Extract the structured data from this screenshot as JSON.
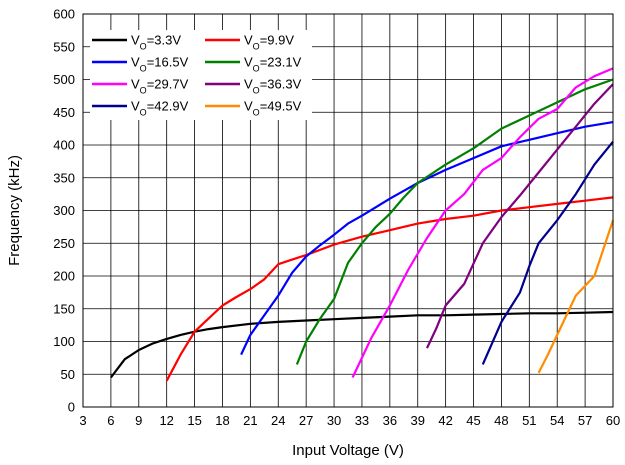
{
  "chart_data": {
    "type": "line",
    "title": "",
    "xlabel": "Input Voltage (V)",
    "ylabel": "Frequency (kHz)",
    "xlim": [
      3,
      60
    ],
    "ylim": [
      0,
      600
    ],
    "xticks": [
      3,
      6,
      9,
      12,
      15,
      18,
      21,
      24,
      27,
      30,
      33,
      36,
      39,
      42,
      45,
      48,
      51,
      54,
      57,
      60
    ],
    "yticks": [
      0,
      50,
      100,
      150,
      200,
      250,
      300,
      350,
      400,
      450,
      500,
      550,
      600
    ],
    "grid": true,
    "legend_position": "top-left",
    "series": [
      {
        "name": "VO=3.3V",
        "legend_main": "V",
        "legend_sub": "O",
        "legend_tail": "=3.3V",
        "color": "#000000",
        "points": [
          [
            6,
            45
          ],
          [
            7.5,
            73
          ],
          [
            9,
            87
          ],
          [
            10.5,
            97
          ],
          [
            12,
            104
          ],
          [
            13.5,
            110
          ],
          [
            15,
            115
          ],
          [
            16.5,
            119
          ],
          [
            18,
            122
          ],
          [
            21,
            127
          ],
          [
            24,
            130
          ],
          [
            27,
            132
          ],
          [
            30,
            134
          ],
          [
            33,
            136
          ],
          [
            36,
            138
          ],
          [
            39,
            140
          ],
          [
            42,
            140
          ],
          [
            45,
            141
          ],
          [
            48,
            142
          ],
          [
            51,
            143
          ],
          [
            54,
            143
          ],
          [
            57,
            144
          ],
          [
            60,
            145
          ]
        ]
      },
      {
        "name": "VO=9.9V",
        "legend_main": "V",
        "legend_sub": "O",
        "legend_tail": "=9.9V",
        "color": "#ff0000",
        "points": [
          [
            12,
            40
          ],
          [
            13.5,
            80
          ],
          [
            15,
            115
          ],
          [
            16.5,
            135
          ],
          [
            18,
            155
          ],
          [
            19.5,
            168
          ],
          [
            21,
            180
          ],
          [
            22.5,
            195
          ],
          [
            24,
            218
          ],
          [
            25.5,
            225
          ],
          [
            27,
            232
          ],
          [
            30,
            248
          ],
          [
            33,
            260
          ],
          [
            36,
            270
          ],
          [
            39,
            280
          ],
          [
            42,
            287
          ],
          [
            45,
            292
          ],
          [
            48,
            300
          ],
          [
            51,
            305
          ],
          [
            54,
            310
          ],
          [
            57,
            315
          ],
          [
            60,
            320
          ]
        ]
      },
      {
        "name": "VO=16.5V",
        "legend_main": "V",
        "legend_sub": "O",
        "legend_tail": "=16.5V",
        "color": "#0000ff",
        "points": [
          [
            20,
            80
          ],
          [
            21,
            110
          ],
          [
            22.5,
            140
          ],
          [
            24,
            170
          ],
          [
            25.5,
            205
          ],
          [
            27,
            230
          ],
          [
            28.5,
            247
          ],
          [
            30,
            263
          ],
          [
            31.5,
            280
          ],
          [
            33,
            292
          ],
          [
            34.5,
            305
          ],
          [
            36,
            318
          ],
          [
            37.5,
            330
          ],
          [
            39,
            342
          ],
          [
            42,
            362
          ],
          [
            45,
            380
          ],
          [
            48,
            398
          ],
          [
            51,
            408
          ],
          [
            54,
            418
          ],
          [
            57,
            428
          ],
          [
            60,
            435
          ]
        ]
      },
      {
        "name": "VO=23.1V",
        "legend_main": "V",
        "legend_sub": "O",
        "legend_tail": "=23.1V",
        "color": "#008000",
        "points": [
          [
            26,
            65
          ],
          [
            27,
            100
          ],
          [
            28.5,
            135
          ],
          [
            30,
            165
          ],
          [
            31.5,
            220
          ],
          [
            33,
            250
          ],
          [
            34.5,
            275
          ],
          [
            36,
            295
          ],
          [
            37.5,
            320
          ],
          [
            39,
            342
          ],
          [
            42,
            370
          ],
          [
            45,
            395
          ],
          [
            48,
            425
          ],
          [
            51,
            445
          ],
          [
            54,
            465
          ],
          [
            57,
            485
          ],
          [
            60,
            500
          ]
        ]
      },
      {
        "name": "VO=29.7V",
        "legend_main": "V",
        "legend_sub": "O",
        "legend_tail": "=29.7V",
        "color": "#ff00ff",
        "points": [
          [
            32,
            45
          ],
          [
            33,
            75
          ],
          [
            34,
            105
          ],
          [
            36,
            155
          ],
          [
            38,
            210
          ],
          [
            40,
            258
          ],
          [
            42,
            300
          ],
          [
            44,
            325
          ],
          [
            46,
            362
          ],
          [
            48,
            380
          ],
          [
            50,
            412
          ],
          [
            52,
            440
          ],
          [
            54,
            455
          ],
          [
            56,
            488
          ],
          [
            58,
            505
          ],
          [
            60,
            517
          ]
        ]
      },
      {
        "name": "VO=36.3V",
        "legend_main": "V",
        "legend_sub": "O",
        "legend_tail": "=36.3V",
        "color": "#800080",
        "points": [
          [
            40,
            90
          ],
          [
            41,
            120
          ],
          [
            42,
            155
          ],
          [
            44,
            188
          ],
          [
            46,
            250
          ],
          [
            48,
            290
          ],
          [
            50,
            323
          ],
          [
            52,
            358
          ],
          [
            54,
            393
          ],
          [
            56,
            428
          ],
          [
            58,
            463
          ],
          [
            60,
            493
          ]
        ]
      },
      {
        "name": "VO=42.9V",
        "legend_main": "V",
        "legend_sub": "O",
        "legend_tail": "=42.9V",
        "color": "#00008b",
        "points": [
          [
            46,
            65
          ],
          [
            48,
            130
          ],
          [
            50,
            175
          ],
          [
            51,
            215
          ],
          [
            52,
            250
          ],
          [
            54,
            285
          ],
          [
            56,
            325
          ],
          [
            58,
            370
          ],
          [
            60,
            405
          ]
        ]
      },
      {
        "name": "VO=49.5V",
        "legend_main": "V",
        "legend_sub": "O",
        "legend_tail": "=49.5V",
        "color": "#ff8c00",
        "points": [
          [
            52,
            52
          ],
          [
            53,
            80
          ],
          [
            54,
            110
          ],
          [
            56,
            170
          ],
          [
            58,
            200
          ],
          [
            60,
            285
          ]
        ]
      }
    ]
  }
}
